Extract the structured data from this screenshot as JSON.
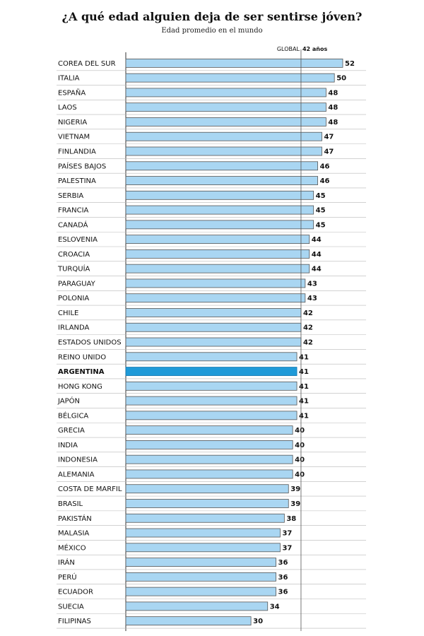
{
  "header": {
    "title": "¿A qué edad alguien deja de ser sentirse jóven?",
    "subtitle": "Edad promedio en el mundo"
  },
  "chart_data": {
    "type": "bar",
    "orientation": "horizontal",
    "title": "¿A qué edad alguien deja de ser sentirse jóven?",
    "subtitle": "Edad promedio en el mundo",
    "categories": [
      "COREA DEL SUR",
      "ITALIA",
      "ESPAÑA",
      "LAOS",
      "NIGERIA",
      "VIETNAM",
      "FINLANDIA",
      "PAÍSES BAJOS",
      "PALESTINA",
      "SERBIA",
      "FRANCIA",
      "CANADÁ",
      "ESLOVENIA",
      "CROACIA",
      "TURQUÍA",
      "PARAGUAY",
      "POLONIA",
      "CHILE",
      "IRLANDA",
      "ESTADOS UNIDOS",
      "REINO UNIDO",
      "ARGENTINA",
      "HONG KONG",
      "JAPÓN",
      "BÉLGICA",
      "GRECIA",
      "INDIA",
      "INDONESIA",
      "ALEMANIA",
      "COSTA DE MARFIL",
      "BRASIL",
      "PAKISTÁN",
      "MALASIA",
      "MÉXICO",
      "IRÁN",
      "PERÚ",
      "ECUADOR",
      "SUECIA",
      "FILIPINAS"
    ],
    "values": [
      52,
      50,
      48,
      48,
      48,
      47,
      47,
      46,
      46,
      45,
      45,
      45,
      44,
      44,
      44,
      43,
      43,
      42,
      42,
      42,
      41,
      41,
      41,
      41,
      41,
      40,
      40,
      40,
      40,
      39,
      39,
      38,
      37,
      37,
      36,
      36,
      36,
      34,
      30
    ],
    "highlight": "ARGENTINA",
    "reference_line": {
      "label": "GLOBAL",
      "value_label": "42 años",
      "value": 42
    },
    "colors": {
      "bar": "#a9d6f2",
      "highlight": "#1f9ad8",
      "border": "#555555",
      "reference": "#555555"
    },
    "xlim": [
      0,
      55
    ],
    "grid": false
  }
}
